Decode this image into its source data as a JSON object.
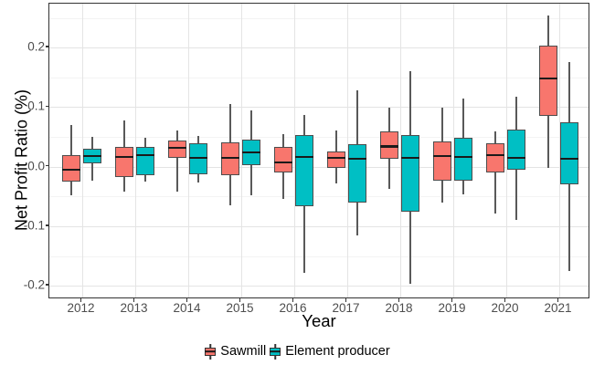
{
  "y_axis": {
    "title": "Net Profit Ratio (%)",
    "tick_labels": [
      "0.2",
      "0.1",
      "0.0",
      "-0.1",
      "-0.2"
    ],
    "tick_values": [
      0.2,
      0.1,
      0.0,
      -0.1,
      -0.2
    ],
    "minor_values": [
      0.25,
      0.15,
      0.05,
      -0.05,
      -0.15
    ]
  },
  "x_axis": {
    "title": "Year",
    "tick_labels": [
      "2012",
      "2013",
      "2014",
      "2015",
      "2016",
      "2017",
      "2018",
      "2019",
      "2020",
      "2021"
    ]
  },
  "legend": {
    "items": [
      {
        "label": "Sawmill",
        "color": "#F8766D"
      },
      {
        "label": "Element producer",
        "color": "#00BFC4"
      }
    ]
  },
  "colors": {
    "sawmill": "#F8766D",
    "element_producer": "#00BFC4",
    "box_border": "#4d4d4d",
    "median_line": "#1a1a1a",
    "whisker": "#595959",
    "grid_major": "#e4e4e4",
    "grid_minor": "#f3f3f3",
    "panel_border": "#333333",
    "axis_text": "#4d4d4d",
    "axis_title": "#000000",
    "background": "#ffffff"
  },
  "chart_data": {
    "type": "boxplot",
    "title": "",
    "xlabel": "Year",
    "ylabel": "Net Profit Ratio (%)",
    "ylim": [
      -0.22,
      0.27
    ],
    "grid": "on",
    "legend_position": "bottom",
    "categories": [
      "2012",
      "2013",
      "2014",
      "2015",
      "2016",
      "2017",
      "2018",
      "2019",
      "2020",
      "2021"
    ],
    "series": [
      {
        "name": "Sawmill",
        "color": "#F8766D",
        "boxes": [
          {
            "low": -0.048,
            "q1": -0.025,
            "median": -0.005,
            "q3": 0.019,
            "high": 0.07
          },
          {
            "low": -0.042,
            "q1": -0.017,
            "median": 0.017,
            "q3": 0.034,
            "high": 0.078
          },
          {
            "low": -0.042,
            "q1": 0.015,
            "median": 0.032,
            "q3": 0.044,
            "high": 0.061
          },
          {
            "low": -0.065,
            "q1": -0.015,
            "median": 0.015,
            "q3": 0.041,
            "high": 0.105
          },
          {
            "low": -0.054,
            "q1": -0.009,
            "median": 0.007,
            "q3": 0.033,
            "high": 0.054
          },
          {
            "low": -0.028,
            "q1": -0.002,
            "median": 0.015,
            "q3": 0.026,
            "high": 0.061
          },
          {
            "low": -0.037,
            "q1": 0.014,
            "median": 0.034,
            "q3": 0.06,
            "high": 0.099
          },
          {
            "low": -0.06,
            "q1": -0.024,
            "median": 0.018,
            "q3": 0.042,
            "high": 0.099
          },
          {
            "low": -0.079,
            "q1": -0.01,
            "median": 0.02,
            "q3": 0.039,
            "high": 0.06
          },
          {
            "low": -0.002,
            "q1": 0.085,
            "median": 0.148,
            "q3": 0.203,
            "high": 0.254
          }
        ]
      },
      {
        "name": "Element producer",
        "color": "#00BFC4",
        "boxes": [
          {
            "low": -0.023,
            "q1": 0.005,
            "median": 0.018,
            "q3": 0.03,
            "high": 0.05
          },
          {
            "low": -0.025,
            "q1": -0.014,
            "median": 0.02,
            "q3": 0.034,
            "high": 0.048
          },
          {
            "low": -0.027,
            "q1": -0.013,
            "median": 0.015,
            "q3": 0.039,
            "high": 0.051
          },
          {
            "low": -0.048,
            "q1": 0.003,
            "median": 0.024,
            "q3": 0.046,
            "high": 0.095
          },
          {
            "low": -0.179,
            "q1": -0.067,
            "median": 0.017,
            "q3": 0.053,
            "high": 0.087
          },
          {
            "low": -0.116,
            "q1": -0.06,
            "median": 0.013,
            "q3": 0.038,
            "high": 0.128
          },
          {
            "low": -0.196,
            "q1": -0.075,
            "median": 0.015,
            "q3": 0.053,
            "high": 0.161
          },
          {
            "low": -0.046,
            "q1": -0.024,
            "median": 0.017,
            "q3": 0.049,
            "high": 0.114
          },
          {
            "low": -0.089,
            "q1": -0.005,
            "median": 0.015,
            "q3": 0.063,
            "high": 0.118
          },
          {
            "low": -0.175,
            "q1": -0.03,
            "median": 0.013,
            "q3": 0.074,
            "high": 0.176
          }
        ]
      }
    ]
  }
}
